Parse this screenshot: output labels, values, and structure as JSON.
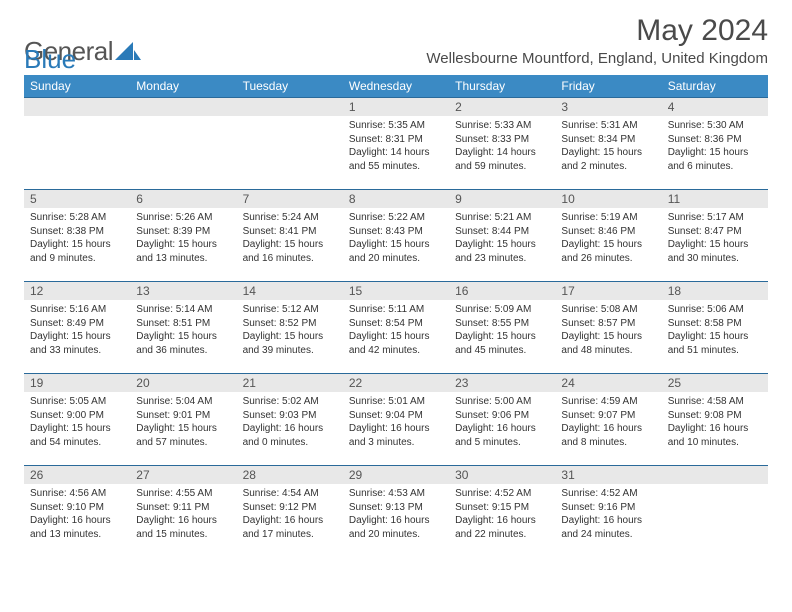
{
  "logo": {
    "text_a": "General",
    "text_b": "Blue"
  },
  "title": "May 2024",
  "location": "Wellesbourne Mountford, England, United Kingdom",
  "colors": {
    "header_bg": "#3b8ac4",
    "header_text": "#ffffff",
    "daynum_bg": "#e8e8e8",
    "row_border": "#2a6a9a",
    "body_text": "#333333",
    "logo_blue": "#2a7ab8"
  },
  "typography": {
    "month_title_fontsize": 30,
    "location_fontsize": 15,
    "th_fontsize": 12,
    "daynum_fontsize": 12,
    "cell_fontsize": 10
  },
  "weekdays": [
    "Sunday",
    "Monday",
    "Tuesday",
    "Wednesday",
    "Thursday",
    "Friday",
    "Saturday"
  ],
  "weeks": [
    [
      null,
      null,
      null,
      {
        "d": "1",
        "sr": "5:35 AM",
        "ss": "8:31 PM",
        "dl": "14 hours and 55 minutes."
      },
      {
        "d": "2",
        "sr": "5:33 AM",
        "ss": "8:33 PM",
        "dl": "14 hours and 59 minutes."
      },
      {
        "d": "3",
        "sr": "5:31 AM",
        "ss": "8:34 PM",
        "dl": "15 hours and 2 minutes."
      },
      {
        "d": "4",
        "sr": "5:30 AM",
        "ss": "8:36 PM",
        "dl": "15 hours and 6 minutes."
      }
    ],
    [
      {
        "d": "5",
        "sr": "5:28 AM",
        "ss": "8:38 PM",
        "dl": "15 hours and 9 minutes."
      },
      {
        "d": "6",
        "sr": "5:26 AM",
        "ss": "8:39 PM",
        "dl": "15 hours and 13 minutes."
      },
      {
        "d": "7",
        "sr": "5:24 AM",
        "ss": "8:41 PM",
        "dl": "15 hours and 16 minutes."
      },
      {
        "d": "8",
        "sr": "5:22 AM",
        "ss": "8:43 PM",
        "dl": "15 hours and 20 minutes."
      },
      {
        "d": "9",
        "sr": "5:21 AM",
        "ss": "8:44 PM",
        "dl": "15 hours and 23 minutes."
      },
      {
        "d": "10",
        "sr": "5:19 AM",
        "ss": "8:46 PM",
        "dl": "15 hours and 26 minutes."
      },
      {
        "d": "11",
        "sr": "5:17 AM",
        "ss": "8:47 PM",
        "dl": "15 hours and 30 minutes."
      }
    ],
    [
      {
        "d": "12",
        "sr": "5:16 AM",
        "ss": "8:49 PM",
        "dl": "15 hours and 33 minutes."
      },
      {
        "d": "13",
        "sr": "5:14 AM",
        "ss": "8:51 PM",
        "dl": "15 hours and 36 minutes."
      },
      {
        "d": "14",
        "sr": "5:12 AM",
        "ss": "8:52 PM",
        "dl": "15 hours and 39 minutes."
      },
      {
        "d": "15",
        "sr": "5:11 AM",
        "ss": "8:54 PM",
        "dl": "15 hours and 42 minutes."
      },
      {
        "d": "16",
        "sr": "5:09 AM",
        "ss": "8:55 PM",
        "dl": "15 hours and 45 minutes."
      },
      {
        "d": "17",
        "sr": "5:08 AM",
        "ss": "8:57 PM",
        "dl": "15 hours and 48 minutes."
      },
      {
        "d": "18",
        "sr": "5:06 AM",
        "ss": "8:58 PM",
        "dl": "15 hours and 51 minutes."
      }
    ],
    [
      {
        "d": "19",
        "sr": "5:05 AM",
        "ss": "9:00 PM",
        "dl": "15 hours and 54 minutes."
      },
      {
        "d": "20",
        "sr": "5:04 AM",
        "ss": "9:01 PM",
        "dl": "15 hours and 57 minutes."
      },
      {
        "d": "21",
        "sr": "5:02 AM",
        "ss": "9:03 PM",
        "dl": "16 hours and 0 minutes."
      },
      {
        "d": "22",
        "sr": "5:01 AM",
        "ss": "9:04 PM",
        "dl": "16 hours and 3 minutes."
      },
      {
        "d": "23",
        "sr": "5:00 AM",
        "ss": "9:06 PM",
        "dl": "16 hours and 5 minutes."
      },
      {
        "d": "24",
        "sr": "4:59 AM",
        "ss": "9:07 PM",
        "dl": "16 hours and 8 minutes."
      },
      {
        "d": "25",
        "sr": "4:58 AM",
        "ss": "9:08 PM",
        "dl": "16 hours and 10 minutes."
      }
    ],
    [
      {
        "d": "26",
        "sr": "4:56 AM",
        "ss": "9:10 PM",
        "dl": "16 hours and 13 minutes."
      },
      {
        "d": "27",
        "sr": "4:55 AM",
        "ss": "9:11 PM",
        "dl": "16 hours and 15 minutes."
      },
      {
        "d": "28",
        "sr": "4:54 AM",
        "ss": "9:12 PM",
        "dl": "16 hours and 17 minutes."
      },
      {
        "d": "29",
        "sr": "4:53 AM",
        "ss": "9:13 PM",
        "dl": "16 hours and 20 minutes."
      },
      {
        "d": "30",
        "sr": "4:52 AM",
        "ss": "9:15 PM",
        "dl": "16 hours and 22 minutes."
      },
      {
        "d": "31",
        "sr": "4:52 AM",
        "ss": "9:16 PM",
        "dl": "16 hours and 24 minutes."
      },
      null
    ]
  ],
  "labels": {
    "sunrise": "Sunrise:",
    "sunset": "Sunset:",
    "daylight": "Daylight:"
  }
}
